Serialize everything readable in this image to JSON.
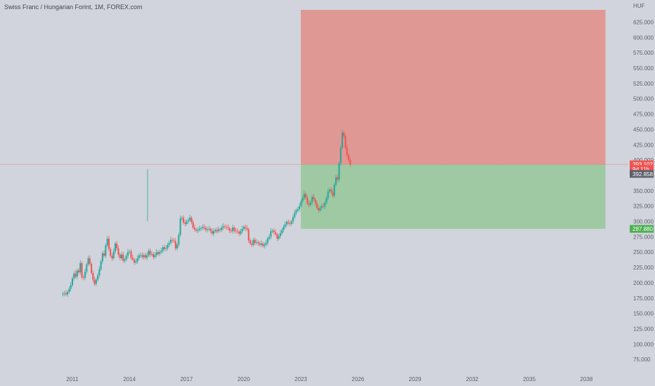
{
  "header": {
    "title": "Swiss Franc / Hungarian Forint, 1M, FOREX.com"
  },
  "price_axis": {
    "currency": "HUF"
  },
  "colors": {
    "background": "#d1d4dc",
    "up": "#26a69a",
    "down": "#ef5350",
    "stop_zone": "#e09894",
    "target_zone": "#9fc9a2",
    "axis_text": "#5d606b",
    "price_line": "#ef5350"
  },
  "price_tags": [
    {
      "label": "393.102",
      "value": 393.102,
      "color": "#ef5350"
    },
    {
      "label": "9d 11h",
      "value": 385.5,
      "color": "#ef5350"
    },
    {
      "label": "392.858",
      "value": 377.5,
      "color": "#5d606b"
    },
    {
      "label": "287.880",
      "value": 287.88,
      "color": "#4caf50"
    }
  ],
  "chart_data": {
    "type": "candlestick",
    "title": "Swiss Franc / Hungarian Forint, 1M, FOREX.com",
    "ylabel": "HUF",
    "ylim": [
      50,
      645
    ],
    "xlim": [
      2007.2,
      2040.2
    ],
    "yticks": [
      "625.000",
      "600.000",
      "575.000",
      "550.000",
      "525.000",
      "500.000",
      "475.000",
      "450.000",
      "425.000",
      "400.000",
      "375.000",
      "350.000",
      "325.000",
      "300.000",
      "275.000",
      "250.000",
      "225.000",
      "200.000",
      "175.000",
      "150.000",
      "125.000",
      "100.000",
      "75.000"
    ],
    "xticks": [
      {
        "label": "2011",
        "year": 2011
      },
      {
        "label": "2014",
        "year": 2014
      },
      {
        "label": "2017",
        "year": 2017
      },
      {
        "label": "2020",
        "year": 2020
      },
      {
        "label": "2023",
        "year": 2023
      },
      {
        "label": "2026",
        "year": 2026
      },
      {
        "label": "2029",
        "year": 2029
      },
      {
        "label": "2032",
        "year": 2032
      },
      {
        "label": "2035",
        "year": 2035
      },
      {
        "label": "2038",
        "year": 2038
      }
    ],
    "current_price": 393.102,
    "position": {
      "type": "short",
      "entry": 393.102,
      "stop": 645,
      "target": 287.88,
      "start_year": 2023.0,
      "end_year": 2039.0
    },
    "series": [
      {
        "start_year": 2010.5,
        "step": 0.0834,
        "closes": [
          182,
          183,
          181,
          185,
          190,
          196,
          207,
          215,
          210,
          220,
          217,
          232,
          209,
          208,
          218,
          230,
          240,
          231,
          216,
          205,
          198,
          205,
          212,
          222,
          235,
          248,
          244,
          261,
          272,
          255,
          244,
          240,
          251,
          264,
          256,
          246,
          240,
          246,
          236,
          238,
          244,
          250,
          251,
          241,
          238,
          233,
          235,
          240,
          245,
          245,
          242,
          245,
          241,
          245,
          252,
          246,
          247,
          242,
          245,
          250,
          247,
          250,
          252,
          258,
          255,
          256,
          262,
          265,
          270,
          269,
          268,
          256,
          262,
          278,
          305,
          306,
          298,
          296,
          300,
          302,
          306,
          299,
          290,
          287,
          285,
          286,
          288,
          289,
          291,
          290,
          286,
          287,
          288,
          285,
          280,
          284,
          286,
          284,
          287,
          286,
          290,
          292,
          291,
          290,
          289,
          285,
          284,
          290,
          285,
          284,
          283,
          280,
          284,
          288,
          291,
          289,
          287,
          269,
          264,
          262,
          270,
          265,
          266,
          264,
          262,
          264,
          260,
          262,
          265,
          272,
          275,
          284,
          285,
          282,
          279,
          272,
          276,
          281,
          286,
          291,
          295,
          299,
          297,
          296,
          300,
          307,
          314,
          318,
          320,
          325,
          333,
          338,
          345,
          339,
          329,
          327,
          331,
          340,
          336,
          330,
          322,
          318,
          322,
          325,
          324,
          330,
          338,
          349,
          352,
          348,
          342,
          360,
          372,
          368,
          395,
          420,
          445,
          439,
          420,
          408,
          400,
          393
        ]
      }
    ]
  }
}
